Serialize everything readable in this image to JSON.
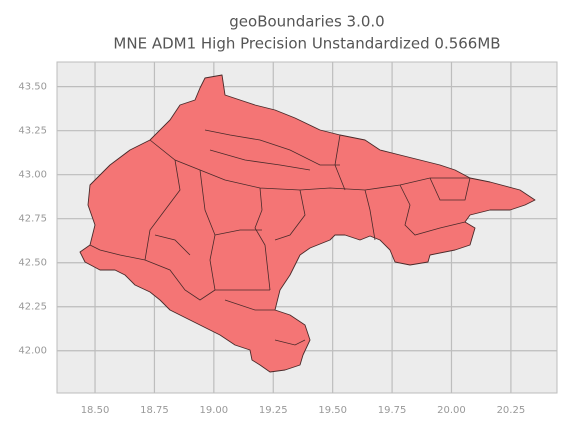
{
  "chart_data": {
    "type": "map",
    "title": "geoBoundaries 3.0.0",
    "subtitle": "MNE ADM1 High Precision Unstandardized 0.566MB",
    "xlim": [
      18.34,
      20.444
    ],
    "ylim": [
      41.76,
      43.64
    ],
    "xticks": [
      {
        "value": 18.5,
        "label": "18.50"
      },
      18.75,
      {
        "value": 19.0,
        "label": "19.00"
      },
      19.25,
      {
        "value": 19.5,
        "label": "19.50"
      },
      19.75,
      {
        "value": 20.0,
        "label": "20.00"
      },
      20.25
    ],
    "yticks": [
      {
        "value": 42.0,
        "label": "42.00"
      },
      42.25,
      {
        "value": 42.5,
        "label": "42.50"
      },
      42.75,
      {
        "value": 43.0,
        "label": "43.00"
      },
      43.25,
      {
        "value": 43.5,
        "label": "43.50"
      }
    ],
    "grid": true
  }
}
